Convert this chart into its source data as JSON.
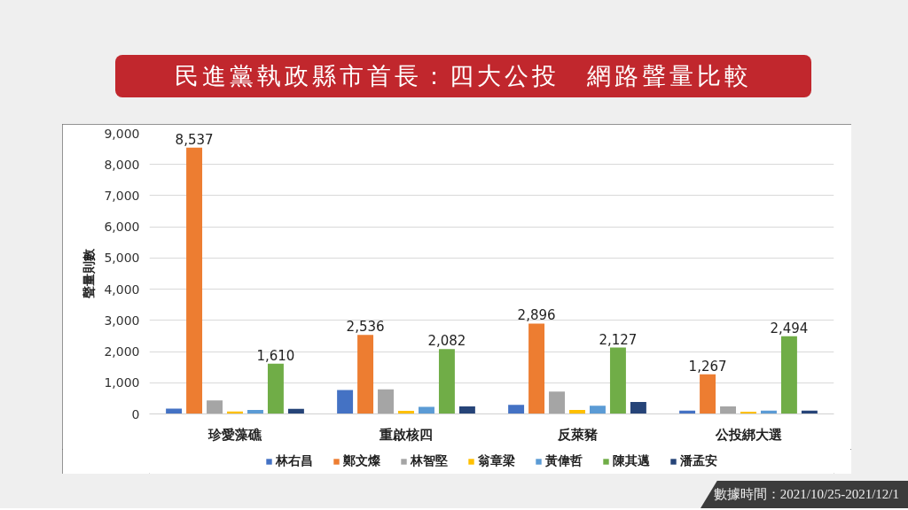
{
  "chart_data": {
    "type": "bar",
    "title": "民進黨執政縣市首長：四大公投　網路聲量比較",
    "ylabel": "聲量則數",
    "annotations": [
      "數據時間：2021/10/25-2021/12/1"
    ],
    "categories": [
      "珍愛藻礁",
      "重啟核四",
      "反萊豬",
      "公投綁大選"
    ],
    "series": [
      {
        "name": "林右昌",
        "color": "#4472c4",
        "values": [
          170,
          770,
          290,
          110
        ]
      },
      {
        "name": "鄭文燦",
        "color": "#ed7d31",
        "values": [
          8537,
          2536,
          2896,
          1267
        ],
        "value_labels": [
          "8,537",
          "2,536",
          "2,896",
          "1,267"
        ]
      },
      {
        "name": "林智堅",
        "color": "#a5a5a5",
        "values": [
          430,
          790,
          720,
          240
        ]
      },
      {
        "name": "翁章梁",
        "color": "#ffc000",
        "values": [
          80,
          100,
          130,
          70
        ]
      },
      {
        "name": "黃偉哲",
        "color": "#5b9bd5",
        "values": [
          130,
          230,
          260,
          110
        ]
      },
      {
        "name": "陳其邁",
        "color": "#70ad47",
        "values": [
          1610,
          2082,
          2127,
          2494
        ],
        "value_labels": [
          "1,610",
          "2,082",
          "2,127",
          "2,494"
        ]
      },
      {
        "name": "潘孟安",
        "color": "#264478",
        "values": [
          160,
          240,
          380,
          110
        ]
      }
    ],
    "ylim": [
      0,
      9000
    ],
    "yticks": [
      {
        "value": 0,
        "label": "0"
      },
      {
        "value": 1000,
        "label": "1,000"
      },
      {
        "value": 2000,
        "label": "2,000"
      },
      {
        "value": 3000,
        "label": "3,000"
      },
      {
        "value": 4000,
        "label": "4,000"
      },
      {
        "value": 5000,
        "label": "5,000"
      },
      {
        "value": 6000,
        "label": "6,000"
      },
      {
        "value": 7000,
        "label": "7,000"
      },
      {
        "value": 8000,
        "label": "8,000"
      },
      {
        "value": 9000,
        "label": "9,000"
      }
    ],
    "grid": "y",
    "legend": "bottom"
  }
}
